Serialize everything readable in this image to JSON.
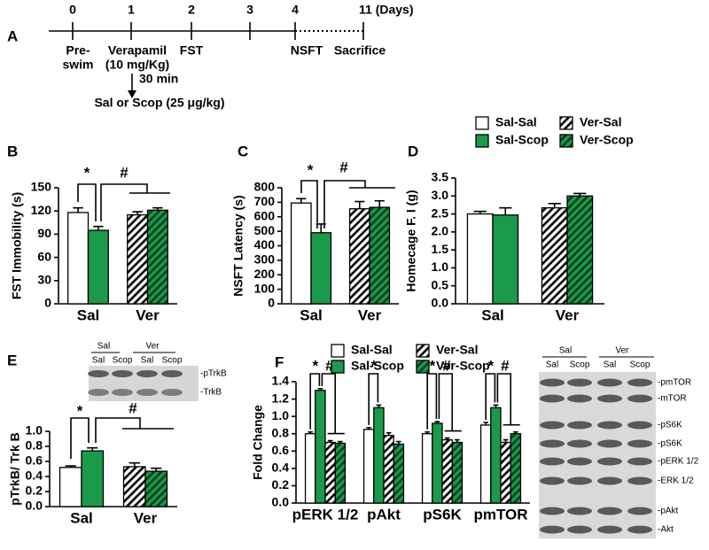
{
  "timeline": {
    "label": "A",
    "days": [
      "0",
      "1",
      "2",
      "3",
      "4",
      "11 (Days)"
    ],
    "events": [
      "Pre-",
      "swim",
      "Verapamil",
      "(10 mg/Kg)",
      "FST",
      "NSFT",
      "Sacrifice"
    ],
    "delay": "30 min",
    "injection": "Sal or Scop (25 μg/kg)"
  },
  "blots": {
    "E": {
      "groups": [
        "Sal",
        "Ver"
      ],
      "lanes": [
        "Sal",
        "Scop",
        "Sal",
        "Scop"
      ],
      "bands": [
        "-pTrkB",
        "-TrkB"
      ]
    },
    "F": {
      "groups": [
        "Sal",
        "Ver"
      ],
      "lanes": [
        "Sal",
        "Scop",
        "Sal",
        "Scop"
      ],
      "bands": [
        "-pmTOR",
        "-mTOR",
        "-pS6K",
        "-pS6K",
        "-pERK 1/2",
        "-ERK 1/2",
        "-pAkt",
        "-Akt"
      ]
    }
  },
  "chart_data": [
    {
      "type": "bar",
      "panel": "B",
      "ylabel": "FST Immobility (s)",
      "categories": [
        "Sal",
        "Ver"
      ],
      "ylim": [
        0,
        150
      ],
      "yticks": [
        0,
        30,
        60,
        90,
        120,
        150
      ],
      "series": [
        {
          "name": "Sal-Sal",
          "color": "#ffffff",
          "values": [
            118,
            null
          ],
          "errors": [
            6,
            null
          ]
        },
        {
          "name": "Sal-Scop",
          "color": "#1b9a4b",
          "values": [
            95,
            null
          ],
          "errors": [
            5,
            null
          ]
        },
        {
          "name": "Ver-Sal",
          "color": "#ffffff",
          "hatch": "#000000",
          "values": [
            null,
            115
          ],
          "errors": [
            null,
            4
          ]
        },
        {
          "name": "Ver-Scop",
          "color": "#1b9a4b",
          "hatch": "#0a3d1d",
          "values": [
            null,
            121
          ],
          "errors": [
            null,
            3
          ]
        }
      ],
      "annotations": [
        "*",
        "#"
      ]
    },
    {
      "type": "bar",
      "panel": "C",
      "ylabel": "NSFT Latency (s)",
      "categories": [
        "Sal",
        "Ver"
      ],
      "ylim": [
        0,
        800
      ],
      "yticks": [
        0,
        100,
        200,
        300,
        400,
        500,
        600,
        700,
        800
      ],
      "series": [
        {
          "name": "Sal-Sal",
          "color": "#ffffff",
          "values": [
            695,
            null
          ],
          "errors": [
            30,
            null
          ]
        },
        {
          "name": "Sal-Scop",
          "color": "#1b9a4b",
          "values": [
            490,
            null
          ],
          "errors": [
            60,
            null
          ]
        },
        {
          "name": "Ver-Sal",
          "color": "#ffffff",
          "hatch": "#000000",
          "values": [
            null,
            655
          ],
          "errors": [
            null,
            50
          ]
        },
        {
          "name": "Ver-Scop",
          "color": "#1b9a4b",
          "hatch": "#0a3d1d",
          "values": [
            null,
            665
          ],
          "errors": [
            null,
            45
          ]
        }
      ],
      "annotations": [
        "*",
        "#"
      ]
    },
    {
      "type": "bar",
      "panel": "D",
      "ylabel": "Homecage F. I (g)",
      "categories": [
        "Sal",
        "Ver"
      ],
      "ylim": [
        0,
        3.5
      ],
      "yticks": [
        {
          "value": 0,
          "label": "0.0"
        },
        0.5,
        {
          "value": 1,
          "label": "1.0"
        },
        1.5,
        {
          "value": 2,
          "label": "2.0"
        },
        2.5,
        {
          "value": 3,
          "label": "3.0"
        },
        3.5
      ],
      "legend": true,
      "series": [
        {
          "name": "Sal-Sal",
          "color": "#ffffff",
          "values": [
            2.5,
            null
          ],
          "errors": [
            0.07,
            null
          ]
        },
        {
          "name": "Sal-Scop",
          "color": "#1b9a4b",
          "values": [
            2.47,
            null
          ],
          "errors": [
            0.2,
            null
          ]
        },
        {
          "name": "Ver-Sal",
          "color": "#ffffff",
          "hatch": "#000000",
          "values": [
            null,
            2.67
          ],
          "errors": [
            null,
            0.12
          ]
        },
        {
          "name": "Ver-Scop",
          "color": "#1b9a4b",
          "hatch": "#0a3d1d",
          "values": [
            null,
            3.0
          ],
          "errors": [
            null,
            0.07
          ]
        }
      ]
    },
    {
      "type": "bar",
      "panel": "E",
      "ylabel": "pTrkB/ Trk B",
      "categories": [
        "Sal",
        "Ver"
      ],
      "ylim": [
        0,
        1
      ],
      "yticks": [
        {
          "value": 0,
          "label": "0.0"
        },
        0.2,
        0.4,
        0.6,
        0.8,
        {
          "value": 1,
          "label": "1.0"
        }
      ],
      "series": [
        {
          "name": "Sal-Sal",
          "color": "#ffffff",
          "values": [
            0.52,
            null
          ],
          "errors": [
            0.02,
            null
          ]
        },
        {
          "name": "Sal-Scop",
          "color": "#1b9a4b",
          "values": [
            0.74,
            null
          ],
          "errors": [
            0.04,
            null
          ]
        },
        {
          "name": "Ver-Sal",
          "color": "#ffffff",
          "hatch": "#000000",
          "values": [
            null,
            0.53
          ],
          "errors": [
            null,
            0.05
          ]
        },
        {
          "name": "Ver-Scop",
          "color": "#1b9a4b",
          "hatch": "#0a3d1d",
          "values": [
            null,
            0.47
          ],
          "errors": [
            null,
            0.04
          ]
        }
      ],
      "annotations": [
        "*",
        "#"
      ]
    },
    {
      "type": "bar",
      "panel": "F",
      "ylabel": "Fold Change",
      "categories": [
        "pERK 1/2",
        "pAkt",
        "pS6K",
        "pmTOR"
      ],
      "ylim": [
        0,
        1.4
      ],
      "yticks": [
        {
          "value": 0,
          "label": "0.0"
        },
        0.2,
        0.4,
        0.6,
        0.8,
        {
          "value": 1,
          "label": "1.0"
        },
        1.2,
        1.4
      ],
      "legend": true,
      "series": [
        {
          "name": "Sal-Sal",
          "color": "#ffffff",
          "values": [
            0.8,
            0.85,
            0.8,
            0.9
          ],
          "errors": [
            0.02,
            0.02,
            0.02,
            0.03
          ]
        },
        {
          "name": "Sal-Scop",
          "color": "#1b9a4b",
          "values": [
            1.3,
            1.1,
            0.92,
            1.1
          ],
          "errors": [
            0.02,
            0.03,
            0.02,
            0.03
          ]
        },
        {
          "name": "Ver-Sal",
          "color": "#ffffff",
          "hatch": "#000000",
          "values": [
            0.7,
            0.78,
            0.73,
            0.7
          ],
          "errors": [
            0.02,
            0.03,
            0.02,
            0.03
          ]
        },
        {
          "name": "Ver-Scop",
          "color": "#1b9a4b",
          "hatch": "#0a3d1d",
          "values": [
            0.69,
            0.68,
            0.7,
            0.8
          ],
          "errors": [
            0.02,
            0.03,
            0.03,
            0.02
          ]
        }
      ],
      "annotations": [
        "*",
        "#",
        "*",
        "*",
        "#",
        "*",
        "#"
      ]
    }
  ]
}
